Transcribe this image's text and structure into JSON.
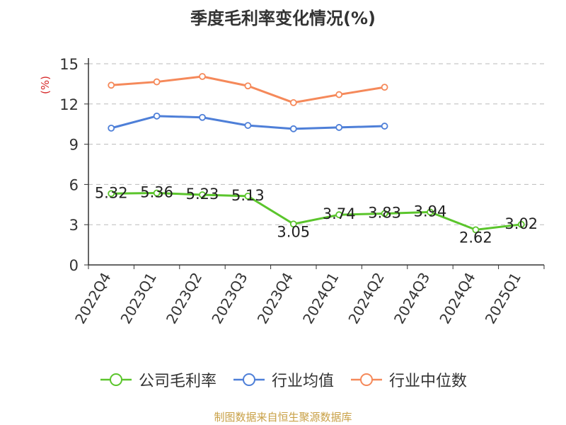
{
  "chart_data": {
    "type": "line",
    "title": "季度毛利率变化情况(%)",
    "ylabel": "(%)",
    "xlabel": "",
    "categories": [
      "2022Q4",
      "2023Q1",
      "2023Q2",
      "2023Q3",
      "2023Q4",
      "2024Q1",
      "2024Q2",
      "2024Q3",
      "2024Q4",
      "2025Q1"
    ],
    "ylim": [
      0,
      15
    ],
    "yticks": [
      0,
      3,
      6,
      9,
      12,
      15
    ],
    "grid": true,
    "legend_position": "bottom",
    "series": [
      {
        "name": "公司毛利率",
        "color": "#5bc52c",
        "show_labels": true,
        "values": [
          5.32,
          5.36,
          5.23,
          5.13,
          3.05,
          3.74,
          3.83,
          3.94,
          2.62,
          3.02
        ]
      },
      {
        "name": "行业均值",
        "color": "#4e7fd8",
        "show_labels": false,
        "values": [
          10.2,
          11.1,
          11.0,
          10.4,
          10.15,
          10.25,
          10.35,
          null,
          null,
          null
        ]
      },
      {
        "name": "行业中位数",
        "color": "#f5895a",
        "show_labels": false,
        "values": [
          13.4,
          13.65,
          14.05,
          13.35,
          12.1,
          12.7,
          13.25,
          null,
          null,
          null
        ]
      }
    ]
  },
  "source": "制图数据来自恒生聚源数据库"
}
